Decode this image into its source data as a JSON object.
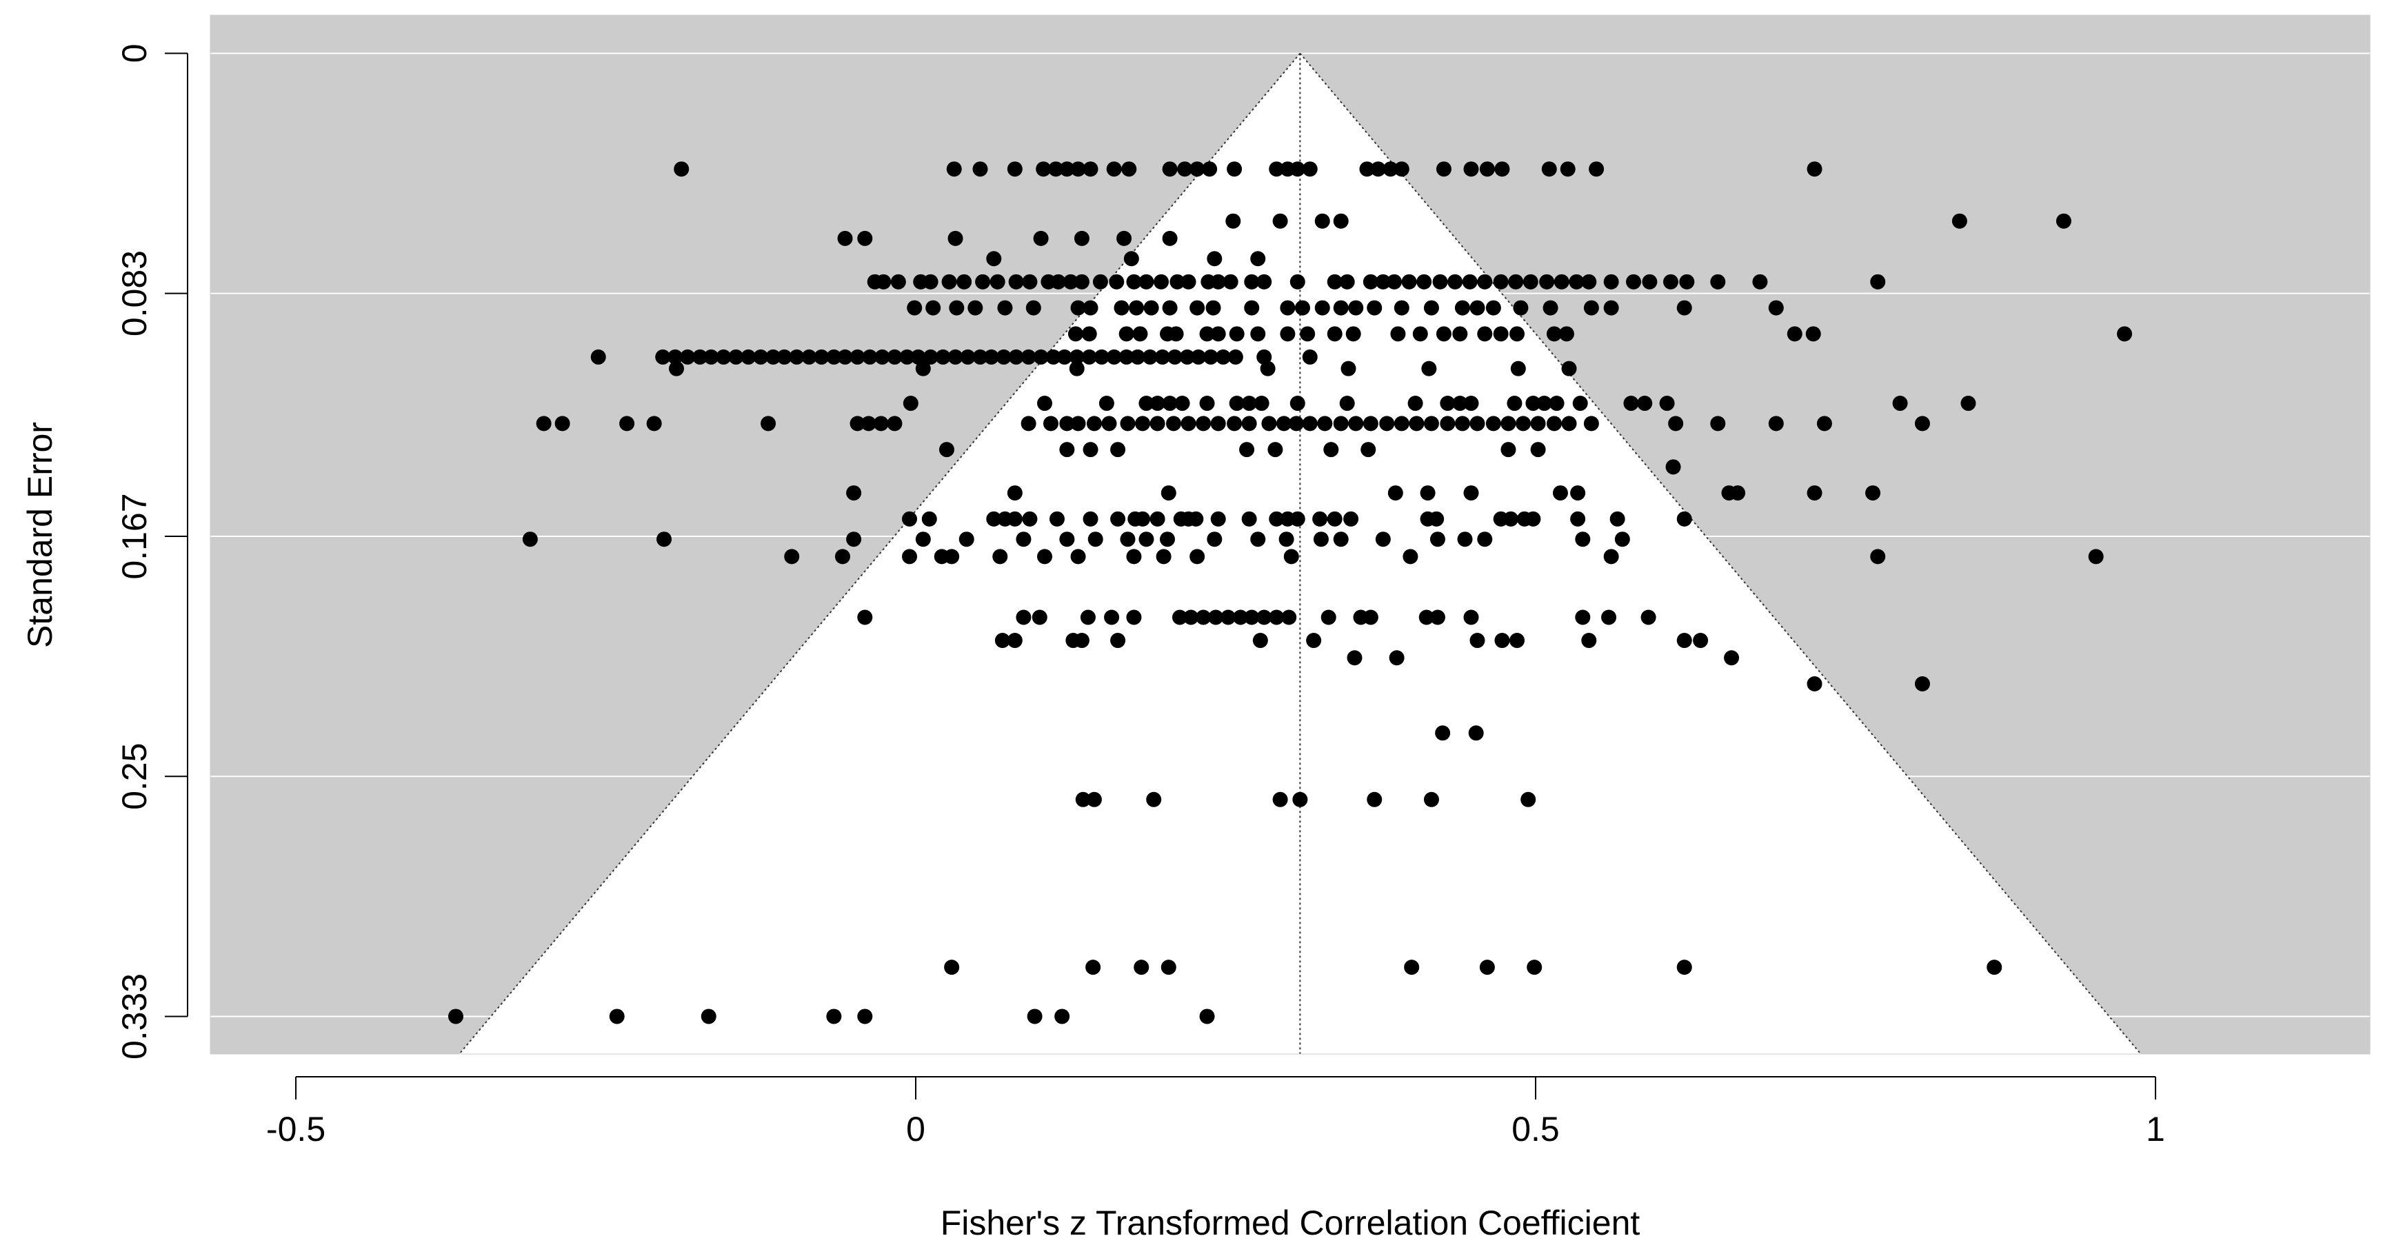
{
  "chart_data": {
    "type": "funnel",
    "x_label": "Fisher's z Transformed Correlation Coefficient",
    "y_label": "Standard Error",
    "xlim": [
      -0.569,
      1.173
    ],
    "ylim": [
      -0.0132,
      0.346
    ],
    "y_inverted": true,
    "xticks": [
      -0.5,
      0,
      0.5,
      1
    ],
    "yticks": [
      0,
      0.083,
      0.167,
      0.25,
      0.333
    ],
    "center": 0.31,
    "funnel_multiplier": 1.96,
    "background_color": "#cccccc",
    "funnel_color": "#ffffff",
    "grid": true,
    "color": "#000000",
    "x": [
      -0.189,
      0.031,
      0.052,
      0.08,
      0.103,
      0.113,
      0.122,
      0.131,
      0.141,
      0.16,
      0.172,
      0.205,
      0.217,
      0.227,
      0.237,
      0.257,
      0.291,
      0.3,
      0.308,
      0.318,
      0.364,
      0.373,
      0.383,
      0.392,
      0.426,
      0.448,
      0.461,
      0.473,
      0.511,
      0.526,
      0.549,
      0.725,
      0.256,
      0.294,
      0.328,
      0.343,
      0.842,
      0.926,
      -0.057,
      -0.041,
      0.032,
      0.101,
      0.134,
      0.168,
      0.205,
      0.063,
      0.174,
      0.241,
      0.276,
      -0.033,
      -0.026,
      -0.014,
      0.004,
      0.012,
      0.027,
      0.039,
      0.054,
      0.066,
      0.081,
      0.092,
      0.107,
      0.115,
      0.125,
      0.134,
      0.149,
      0.162,
      0.176,
      0.186,
      0.198,
      0.211,
      0.22,
      0.236,
      0.244,
      0.254,
      0.271,
      0.281,
      0.308,
      0.338,
      0.348,
      0.367,
      0.377,
      0.386,
      0.398,
      0.41,
      0.423,
      0.435,
      0.447,
      0.459,
      0.472,
      0.484,
      0.496,
      0.509,
      0.521,
      0.533,
      0.543,
      0.561,
      0.579,
      0.592,
      0.609,
      0.622,
      0.647,
      0.681,
      0.776,
      -0.001,
      0.014,
      0.033,
      0.048,
      0.072,
      0.095,
      0.131,
      0.141,
      0.166,
      0.178,
      0.19,
      0.205,
      0.227,
      0.24,
      0.271,
      0.3,
      0.312,
      0.328,
      0.343,
      0.355,
      0.37,
      0.392,
      0.416,
      0.441,
      0.453,
      0.466,
      0.488,
      0.512,
      0.545,
      0.561,
      0.62,
      0.694,
      0.129,
      0.14,
      0.17,
      0.181,
      0.203,
      0.21,
      0.235,
      0.244,
      0.259,
      0.276,
      0.3,
      0.316,
      0.338,
      0.353,
      0.389,
      0.407,
      0.426,
      0.439,
      0.459,
      0.472,
      0.485,
      0.515,
      0.525,
      0.709,
      0.724,
      0.975,
      -0.256,
      -0.204,
      -0.194,
      -0.184,
      -0.174,
      -0.165,
      -0.155,
      -0.145,
      -0.135,
      -0.125,
      -0.115,
      -0.106,
      -0.096,
      -0.086,
      -0.076,
      -0.066,
      -0.057,
      -0.047,
      -0.037,
      -0.027,
      -0.017,
      -0.007,
      0.002,
      0.012,
      0.022,
      0.032,
      0.042,
      0.052,
      0.061,
      0.071,
      0.081,
      0.091,
      0.101,
      0.111,
      0.12,
      0.13,
      0.14,
      0.15,
      0.16,
      0.17,
      0.179,
      0.189,
      0.199,
      0.209,
      0.219,
      0.228,
      0.238,
      0.248,
      0.258,
      0.281,
      0.318,
      -0.193,
      0.006,
      0.13,
      0.284,
      0.349,
      0.414,
      0.486,
      0.527,
      -0.004,
      0.104,
      0.154,
      0.186,
      0.195,
      0.205,
      0.215,
      0.235,
      0.259,
      0.269,
      0.279,
      0.308,
      0.348,
      0.403,
      0.429,
      0.439,
      0.448,
      0.483,
      0.498,
      0.507,
      0.517,
      0.536,
      0.577,
      0.588,
      0.606,
      0.794,
      0.849,
      -0.3,
      -0.285,
      -0.233,
      -0.211,
      -0.119,
      -0.047,
      -0.038,
      -0.028,
      -0.017,
      0.091,
      0.109,
      0.122,
      0.131,
      0.144,
      0.156,
      0.171,
      0.183,
      0.195,
      0.208,
      0.22,
      0.232,
      0.244,
      0.257,
      0.269,
      0.285,
      0.297,
      0.307,
      0.318,
      0.33,
      0.343,
      0.355,
      0.367,
      0.38,
      0.392,
      0.404,
      0.416,
      0.429,
      0.441,
      0.453,
      0.466,
      0.478,
      0.49,
      0.502,
      0.515,
      0.527,
      0.545,
      0.613,
      0.647,
      0.694,
      0.733,
      0.812,
      0.025,
      0.122,
      0.141,
      0.163,
      0.267,
      0.29,
      0.335,
      0.365,
      0.478,
      0.502,
      0.611,
      -0.05,
      0.08,
      0.204,
      0.387,
      0.413,
      0.448,
      0.52,
      0.534,
      0.656,
      0.663,
      0.725,
      0.772,
      -0.005,
      0.011,
      0.063,
      0.072,
      0.08,
      0.092,
      0.114,
      0.141,
      0.163,
      0.177,
      0.183,
      0.195,
      0.214,
      0.22,
      0.226,
      0.244,
      0.269,
      0.291,
      0.3,
      0.308,
      0.326,
      0.338,
      0.351,
      0.413,
      0.42,
      0.472,
      0.48,
      0.491,
      0.498,
      0.534,
      0.566,
      0.62,
      -0.311,
      -0.203,
      -0.05,
      0.006,
      0.041,
      0.087,
      0.122,
      0.145,
      0.171,
      0.186,
      0.203,
      0.241,
      0.276,
      0.299,
      0.327,
      0.343,
      0.377,
      0.421,
      0.443,
      0.459,
      0.538,
      0.57,
      -0.1,
      -0.059,
      -0.005,
      0.021,
      0.029,
      0.068,
      0.104,
      0.131,
      0.176,
      0.2,
      0.227,
      0.303,
      0.399,
      0.561,
      0.776,
      0.952,
      -0.041,
      0.087,
      0.1,
      0.139,
      0.158,
      0.176,
      0.213,
      0.222,
      0.232,
      0.242,
      0.252,
      0.262,
      0.271,
      0.281,
      0.291,
      0.301,
      0.333,
      0.359,
      0.367,
      0.412,
      0.421,
      0.448,
      0.538,
      0.559,
      0.591,
      0.07,
      0.08,
      0.127,
      0.134,
      0.163,
      0.278,
      0.321,
      0.453,
      0.473,
      0.485,
      0.543,
      0.62,
      0.633,
      0.354,
      0.388,
      0.658,
      0.725,
      0.812,
      0.425,
      0.452,
      0.135,
      0.144,
      0.192,
      0.294,
      0.31,
      0.37,
      0.416,
      0.494,
      0.029,
      0.143,
      0.182,
      0.204,
      0.4,
      0.461,
      0.499,
      0.62,
      0.87,
      -0.371,
      -0.241,
      -0.167,
      -0.066,
      -0.041,
      0.096,
      0.118,
      0.235
    ],
    "values": [
      0.04,
      0.04,
      0.04,
      0.04,
      0.04,
      0.04,
      0.04,
      0.04,
      0.04,
      0.04,
      0.04,
      0.04,
      0.04,
      0.04,
      0.04,
      0.04,
      0.04,
      0.04,
      0.04,
      0.04,
      0.04,
      0.04,
      0.04,
      0.04,
      0.04,
      0.04,
      0.04,
      0.04,
      0.04,
      0.04,
      0.04,
      0.04,
      0.058,
      0.058,
      0.058,
      0.058,
      0.058,
      0.058,
      0.064,
      0.064,
      0.064,
      0.064,
      0.064,
      0.064,
      0.064,
      0.071,
      0.071,
      0.071,
      0.071,
      0.079,
      0.079,
      0.079,
      0.079,
      0.079,
      0.079,
      0.079,
      0.079,
      0.079,
      0.079,
      0.079,
      0.079,
      0.079,
      0.079,
      0.079,
      0.079,
      0.079,
      0.079,
      0.079,
      0.079,
      0.079,
      0.079,
      0.079,
      0.079,
      0.079,
      0.079,
      0.079,
      0.079,
      0.079,
      0.079,
      0.079,
      0.079,
      0.079,
      0.079,
      0.079,
      0.079,
      0.079,
      0.079,
      0.079,
      0.079,
      0.079,
      0.079,
      0.079,
      0.079,
      0.079,
      0.079,
      0.079,
      0.079,
      0.079,
      0.079,
      0.079,
      0.079,
      0.079,
      0.079,
      0.088,
      0.088,
      0.088,
      0.088,
      0.088,
      0.088,
      0.088,
      0.088,
      0.088,
      0.088,
      0.088,
      0.088,
      0.088,
      0.088,
      0.088,
      0.088,
      0.088,
      0.088,
      0.088,
      0.088,
      0.088,
      0.088,
      0.088,
      0.088,
      0.088,
      0.088,
      0.088,
      0.088,
      0.088,
      0.088,
      0.088,
      0.088,
      0.097,
      0.097,
      0.097,
      0.097,
      0.097,
      0.097,
      0.097,
      0.097,
      0.097,
      0.097,
      0.097,
      0.097,
      0.097,
      0.097,
      0.097,
      0.097,
      0.097,
      0.097,
      0.097,
      0.097,
      0.097,
      0.097,
      0.097,
      0.097,
      0.097,
      0.097,
      0.105,
      0.105,
      0.105,
      0.105,
      0.105,
      0.105,
      0.105,
      0.105,
      0.105,
      0.105,
      0.105,
      0.105,
      0.105,
      0.105,
      0.105,
      0.105,
      0.105,
      0.105,
      0.105,
      0.105,
      0.105,
      0.105,
      0.105,
      0.105,
      0.105,
      0.105,
      0.105,
      0.105,
      0.105,
      0.105,
      0.105,
      0.105,
      0.105,
      0.105,
      0.105,
      0.105,
      0.105,
      0.105,
      0.105,
      0.105,
      0.105,
      0.105,
      0.105,
      0.105,
      0.105,
      0.105,
      0.105,
      0.105,
      0.105,
      0.105,
      0.105,
      0.109,
      0.109,
      0.109,
      0.109,
      0.109,
      0.109,
      0.109,
      0.109,
      0.121,
      0.121,
      0.121,
      0.121,
      0.121,
      0.121,
      0.121,
      0.121,
      0.121,
      0.121,
      0.121,
      0.121,
      0.121,
      0.121,
      0.121,
      0.121,
      0.121,
      0.121,
      0.121,
      0.121,
      0.121,
      0.121,
      0.121,
      0.121,
      0.121,
      0.121,
      0.121,
      0.128,
      0.128,
      0.128,
      0.128,
      0.128,
      0.128,
      0.128,
      0.128,
      0.128,
      0.128,
      0.128,
      0.128,
      0.128,
      0.128,
      0.128,
      0.128,
      0.128,
      0.128,
      0.128,
      0.128,
      0.128,
      0.128,
      0.128,
      0.128,
      0.128,
      0.128,
      0.128,
      0.128,
      0.128,
      0.128,
      0.128,
      0.128,
      0.128,
      0.128,
      0.128,
      0.128,
      0.128,
      0.128,
      0.128,
      0.128,
      0.128,
      0.128,
      0.128,
      0.128,
      0.128,
      0.128,
      0.128,
      0.128,
      0.128,
      0.128,
      0.128,
      0.137,
      0.137,
      0.137,
      0.137,
      0.137,
      0.137,
      0.137,
      0.137,
      0.137,
      0.137,
      0.143,
      0.152,
      0.152,
      0.152,
      0.152,
      0.152,
      0.152,
      0.152,
      0.152,
      0.152,
      0.152,
      0.152,
      0.152,
      0.161,
      0.161,
      0.161,
      0.161,
      0.161,
      0.161,
      0.161,
      0.161,
      0.161,
      0.161,
      0.161,
      0.161,
      0.161,
      0.161,
      0.161,
      0.161,
      0.161,
      0.161,
      0.161,
      0.161,
      0.161,
      0.161,
      0.161,
      0.161,
      0.161,
      0.161,
      0.161,
      0.161,
      0.161,
      0.161,
      0.161,
      0.161,
      0.168,
      0.168,
      0.168,
      0.168,
      0.168,
      0.168,
      0.168,
      0.168,
      0.168,
      0.168,
      0.168,
      0.168,
      0.168,
      0.168,
      0.168,
      0.168,
      0.168,
      0.168,
      0.168,
      0.168,
      0.168,
      0.168,
      0.174,
      0.174,
      0.174,
      0.174,
      0.174,
      0.174,
      0.174,
      0.174,
      0.174,
      0.174,
      0.174,
      0.174,
      0.174,
      0.174,
      0.174,
      0.174,
      0.195,
      0.195,
      0.195,
      0.195,
      0.195,
      0.195,
      0.195,
      0.195,
      0.195,
      0.195,
      0.195,
      0.195,
      0.195,
      0.195,
      0.195,
      0.195,
      0.195,
      0.195,
      0.195,
      0.195,
      0.195,
      0.195,
      0.195,
      0.195,
      0.195,
      0.203,
      0.203,
      0.203,
      0.203,
      0.203,
      0.203,
      0.203,
      0.203,
      0.203,
      0.203,
      0.203,
      0.203,
      0.203,
      0.209,
      0.209,
      0.209,
      0.218,
      0.218,
      0.235,
      0.235,
      0.258,
      0.258,
      0.258,
      0.258,
      0.258,
      0.258,
      0.258,
      0.258,
      0.316,
      0.316,
      0.316,
      0.316,
      0.316,
      0.316,
      0.316,
      0.316,
      0.316,
      0.333,
      0.333,
      0.333,
      0.333,
      0.333,
      0.333,
      0.333,
      0.333
    ]
  }
}
